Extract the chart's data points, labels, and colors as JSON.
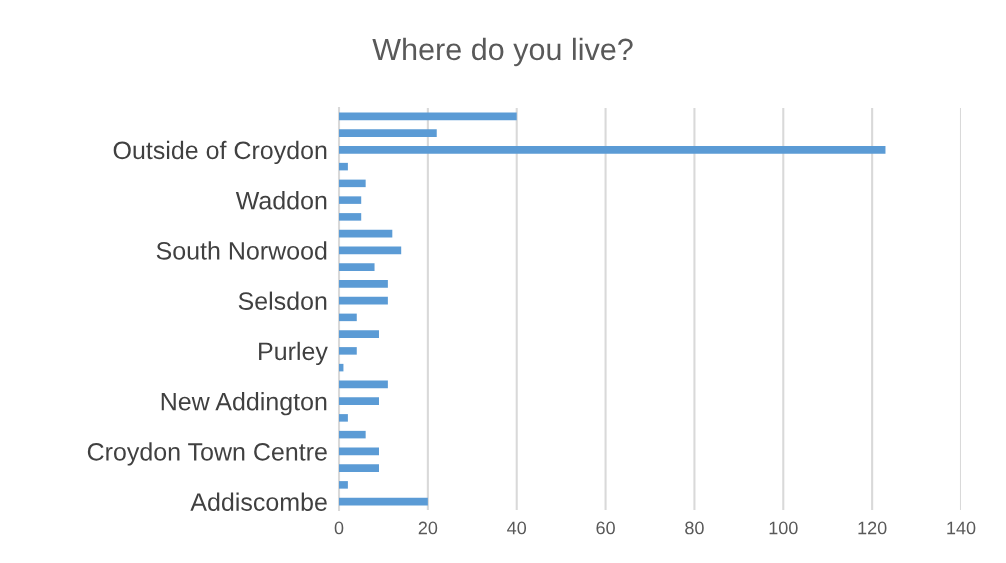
{
  "chart_data": {
    "type": "bar",
    "orientation": "horizontal",
    "title": "Where do you live?",
    "categories": [
      null,
      null,
      "Outside of Croydon",
      null,
      null,
      "Waddon",
      null,
      null,
      "South Norwood",
      null,
      null,
      "Selsdon",
      null,
      null,
      "Purley",
      null,
      null,
      "New Addington",
      null,
      null,
      "Croydon Town Centre",
      null,
      null,
      "Addiscombe"
    ],
    "values": [
      40,
      22,
      123,
      2,
      6,
      5,
      5,
      12,
      14,
      8,
      11,
      11,
      4,
      9,
      4,
      1,
      11,
      9,
      2,
      6,
      9,
      9,
      2,
      20
    ],
    "color": "#5b9bd5",
    "xlim": [
      0,
      140
    ],
    "xticks": [
      0,
      20,
      40,
      60,
      80,
      100,
      120,
      140
    ],
    "grid": "x",
    "legend": false
  }
}
